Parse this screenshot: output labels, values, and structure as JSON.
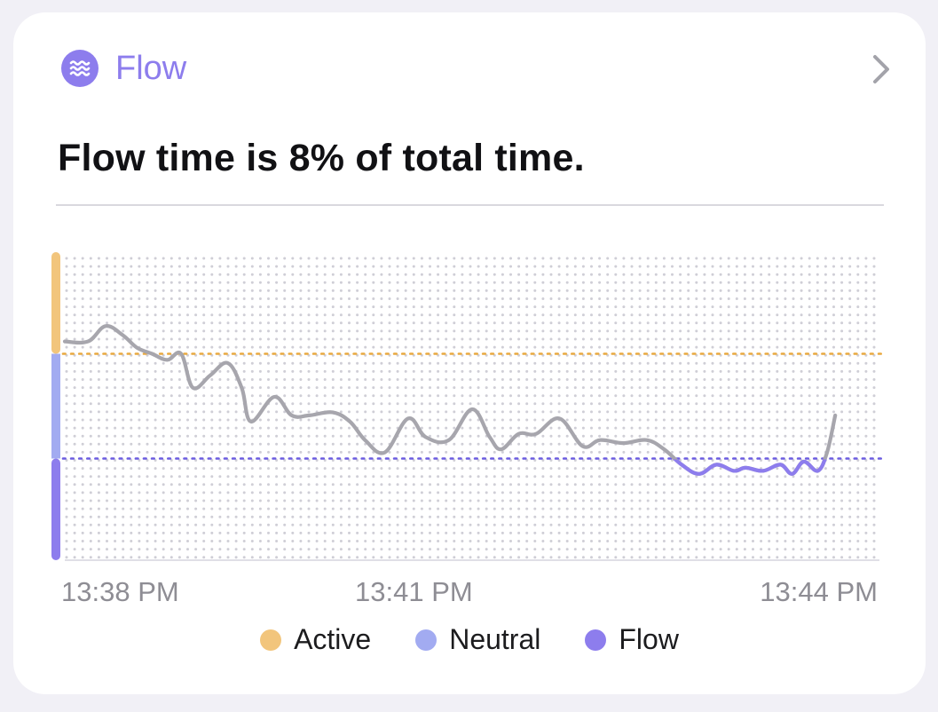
{
  "app": {
    "name": "Flow",
    "icon": "waves-icon",
    "nav": "chevron-right-icon"
  },
  "headline": "Flow time is 8% of total time.",
  "colors": {
    "accent": "#8d7ded",
    "active": "#f2c57c",
    "neutral": "#a2abf1",
    "flow": "#8d7ded",
    "line": "#a7a6ad",
    "active_ref": "#e9a940",
    "flow_ref": "#6b5ce0"
  },
  "chart_data": {
    "type": "line",
    "title": "",
    "xlabel": "",
    "ylabel": "",
    "xlim": [
      0,
      7
    ],
    "ylim": [
      0,
      100
    ],
    "x_ticks": [
      {
        "value": 0,
        "label": "13:38 PM"
      },
      {
        "value": 3,
        "label": "13:41 PM"
      },
      {
        "value": 6,
        "label": "13:44 PM"
      }
    ],
    "y_bands": [
      {
        "name": "Active",
        "from": 67,
        "to": 100
      },
      {
        "name": "Neutral",
        "from": 33,
        "to": 67
      },
      {
        "name": "Flow",
        "from": 0,
        "to": 33
      }
    ],
    "reference_lines": [
      {
        "name": "Active",
        "y": 67
      },
      {
        "name": "Flow",
        "y": 33
      }
    ],
    "series": [
      {
        "name": "",
        "x": [
          0,
          0.2,
          0.35,
          0.5,
          0.62,
          0.75,
          0.88,
          1.0,
          1.1,
          1.25,
          1.4,
          1.52,
          1.6,
          1.8,
          1.95,
          2.1,
          2.3,
          2.45,
          2.58,
          2.75,
          2.95,
          3.1,
          3.3,
          3.5,
          3.65,
          3.75,
          3.9,
          4.05,
          4.25,
          4.45,
          4.6,
          4.8,
          5.0,
          5.15,
          5.3,
          5.45,
          5.6,
          5.75,
          5.85,
          6.0,
          6.15,
          6.25,
          6.35,
          6.47,
          6.55,
          6.62
        ],
        "values": [
          71,
          71,
          76,
          73,
          69,
          67,
          65,
          67,
          56,
          60,
          64,
          56,
          45,
          53,
          47,
          47,
          48,
          45,
          39,
          35,
          46,
          40,
          39,
          49,
          40,
          36,
          41,
          41,
          46,
          37,
          39,
          38,
          39,
          36,
          31,
          28,
          31,
          29,
          30,
          29,
          31,
          28,
          32,
          29,
          35,
          47
        ]
      }
    ],
    "legend": {
      "position": "bottom",
      "entries": [
        "Active",
        "Neutral",
        "Flow"
      ]
    }
  }
}
